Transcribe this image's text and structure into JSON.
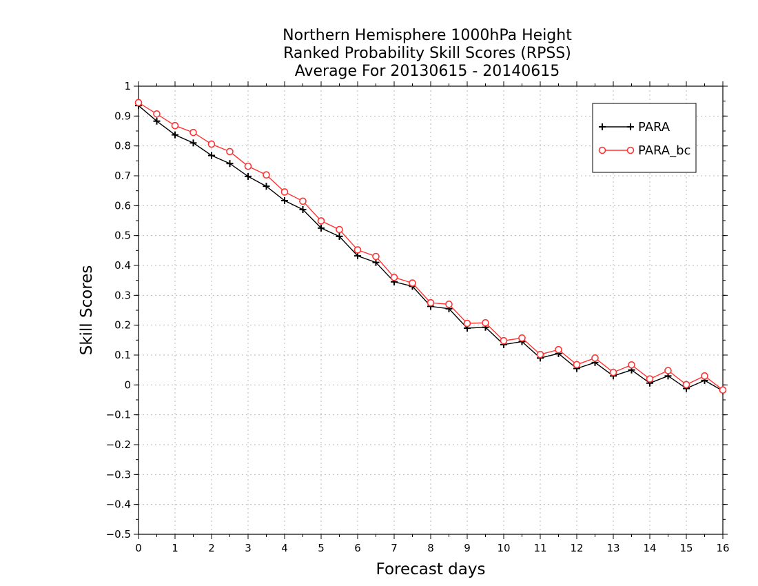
{
  "chart_data": {
    "type": "line",
    "title": [
      "Northern Hemisphere 1000hPa Height",
      "Ranked Probability Skill Scores (RPSS)",
      "Average For 20130615 - 20140615"
    ],
    "xlabel": "Forecast days",
    "ylabel": "Skill Scores",
    "xlim": [
      0,
      16
    ],
    "ylim": [
      -0.5,
      1
    ],
    "xticks": [
      0,
      1,
      2,
      3,
      4,
      5,
      6,
      7,
      8,
      9,
      10,
      11,
      12,
      13,
      14,
      15,
      16
    ],
    "xtick_labels": [
      "0",
      "1",
      "2",
      "3",
      "4",
      "5",
      "6",
      "7",
      "8",
      "9",
      "10",
      "11",
      "12",
      "13",
      "14",
      "15",
      "16"
    ],
    "yticks": [
      1,
      0.9,
      0.8,
      0.7,
      0.6,
      0.5,
      0.4,
      0.3,
      0.2,
      0.1,
      0,
      -0.1,
      -0.2,
      -0.3,
      -0.4,
      -0.5
    ],
    "ytick_labels": [
      "1",
      "0.9",
      "0.8",
      "0.7",
      "0.6",
      "0.5",
      "0.4",
      "0.3",
      "0.2",
      "0.1",
      "0",
      "−0.1",
      "−0.2",
      "−0.3",
      "−0.4",
      "−0.5"
    ],
    "grid": true,
    "legend_position": "top-right",
    "x": [
      0,
      0.5,
      1,
      1.5,
      2,
      2.5,
      3,
      3.5,
      4,
      4.5,
      5,
      5.5,
      6,
      6.5,
      7,
      7.5,
      8,
      8.5,
      9,
      9.5,
      10,
      10.5,
      11,
      11.5,
      12,
      12.5,
      13,
      13.5,
      14,
      14.5,
      15,
      15.5,
      16
    ],
    "series": [
      {
        "name": "PARA",
        "color": "#000000",
        "marker": "plus",
        "values": [
          0.935,
          0.883,
          0.837,
          0.81,
          0.768,
          0.741,
          0.698,
          0.665,
          0.617,
          0.587,
          0.525,
          0.497,
          0.432,
          0.41,
          0.345,
          0.33,
          0.263,
          0.255,
          0.19,
          0.193,
          0.135,
          0.145,
          0.09,
          0.105,
          0.055,
          0.075,
          0.03,
          0.05,
          0.006,
          0.03,
          -0.012,
          0.015,
          -0.02
        ]
      },
      {
        "name": "PARA_bc",
        "color": "#ff3333",
        "marker": "circle",
        "values": [
          0.945,
          0.907,
          0.868,
          0.845,
          0.806,
          0.781,
          0.732,
          0.703,
          0.646,
          0.615,
          0.549,
          0.52,
          0.452,
          0.43,
          0.36,
          0.341,
          0.275,
          0.27,
          0.206,
          0.208,
          0.148,
          0.157,
          0.102,
          0.118,
          0.068,
          0.09,
          0.042,
          0.067,
          0.02,
          0.048,
          0.001,
          0.03,
          -0.017
        ]
      }
    ]
  }
}
